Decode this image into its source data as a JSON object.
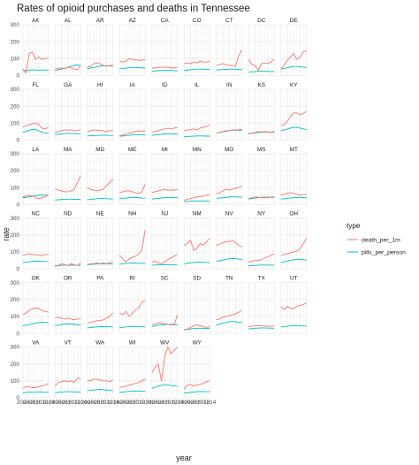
{
  "chart_data": {
    "type": "line",
    "title": "Rates of opioid purchases and deaths in Tennessee",
    "xlabel": "year",
    "ylabel": "rate",
    "ylim": [
      0,
      300
    ],
    "yticks": [
      0,
      100,
      200,
      300
    ],
    "x": [
      2006,
      2007,
      2008,
      2009,
      2010,
      2011,
      2012,
      2013,
      2014
    ],
    "xtick_labels": [
      "2006",
      "2008",
      "2010",
      "2012",
      "2014"
    ],
    "x_axis_note": "x tick labels overlap across adjacent panels",
    "grid": true,
    "facet_layout": {
      "columns": 9,
      "rows": 7,
      "scales": "fixed"
    },
    "legend": {
      "title": "type",
      "position": "right",
      "entries": [
        {
          "name": "death_per_1m",
          "color": "#F8766D"
        },
        {
          "name": "pills_per_person",
          "color": "#00BFC4"
        }
      ]
    },
    "colors": {
      "death_per_1m": "#F8766D",
      "pills_per_person": "#00BFC4",
      "grid": "#ebebeb"
    },
    "panels": [
      {
        "state": "AK",
        "death_per_1m": [
          40,
          15,
          130,
          140,
          95,
          110,
          95,
          100,
          105
        ],
        "pills_per_person": [
          30,
          30,
          32,
          34,
          33,
          32,
          33,
          33,
          32
        ]
      },
      {
        "state": "AL",
        "death_per_1m": [
          40,
          42,
          45,
          40,
          50,
          45,
          38,
          35,
          60
        ],
        "pills_per_person": [
          30,
          35,
          38,
          42,
          48,
          55,
          60,
          62,
          60
        ]
      },
      {
        "state": "AR",
        "death_per_1m": [
          50,
          55,
          70,
          75,
          70,
          60,
          55,
          60,
          60
        ],
        "pills_per_person": [
          40,
          45,
          48,
          52,
          55,
          58,
          58,
          58,
          55
        ]
      },
      {
        "state": "AZ",
        "death_per_1m": [
          85,
          80,
          85,
          100,
          95,
          95,
          90,
          90,
          95
        ],
        "pills_per_person": [
          40,
          42,
          44,
          46,
          48,
          48,
          47,
          45,
          44
        ]
      },
      {
        "state": "CA",
        "death_per_1m": [
          45,
          45,
          48,
          50,
          50,
          48,
          45,
          45,
          48
        ],
        "pills_per_person": [
          25,
          27,
          29,
          30,
          31,
          31,
          30,
          29,
          28
        ]
      },
      {
        "state": "CO",
        "death_per_1m": [
          70,
          75,
          70,
          80,
          75,
          85,
          80,
          80,
          85
        ],
        "pills_per_person": [
          30,
          32,
          35,
          36,
          38,
          38,
          38,
          37,
          36
        ]
      },
      {
        "state": "CT",
        "death_per_1m": [
          60,
          65,
          70,
          65,
          60,
          60,
          55,
          120,
          150
        ],
        "pills_per_person": [
          32,
          34,
          36,
          37,
          38,
          38,
          38,
          37,
          36
        ]
      },
      {
        "state": "DC",
        "death_per_1m": [
          95,
          65,
          60,
          30,
          70,
          75,
          70,
          80,
          95
        ],
        "pills_per_person": [
          22,
          22,
          24,
          25,
          26,
          26,
          25,
          24,
          24
        ]
      },
      {
        "state": "DE",
        "death_per_1m": [
          40,
          60,
          90,
          110,
          130,
          95,
          110,
          140,
          145
        ],
        "pills_per_person": [
          38,
          42,
          46,
          50,
          54,
          54,
          52,
          50,
          48
        ]
      },
      {
        "state": "FL",
        "death_per_1m": [
          75,
          85,
          90,
          95,
          100,
          90,
          70,
          65,
          75
        ],
        "pills_per_person": [
          45,
          52,
          58,
          62,
          64,
          54,
          46,
          42,
          40
        ]
      },
      {
        "state": "GA",
        "death_per_1m": [
          45,
          50,
          55,
          60,
          58,
          60,
          55,
          55,
          62
        ],
        "pills_per_person": [
          32,
          34,
          36,
          38,
          39,
          39,
          38,
          37,
          36
        ]
      },
      {
        "state": "HI",
        "death_per_1m": [
          50,
          55,
          60,
          58,
          55,
          55,
          50,
          55,
          55
        ],
        "pills_per_person": [
          24,
          25,
          26,
          27,
          28,
          28,
          28,
          27,
          27
        ]
      },
      {
        "state": "IA",
        "death_per_1m": [
          25,
          30,
          35,
          40,
          45,
          50,
          55,
          50,
          55
        ],
        "pills_per_person": [
          22,
          24,
          26,
          28,
          30,
          31,
          31,
          30,
          30
        ]
      },
      {
        "state": "ID",
        "death_per_1m": [
          45,
          50,
          55,
          60,
          65,
          70,
          65,
          70,
          75
        ],
        "pills_per_person": [
          28,
          30,
          32,
          34,
          36,
          37,
          37,
          36,
          36
        ]
      },
      {
        "state": "IL",
        "death_per_1m": [
          55,
          60,
          60,
          65,
          60,
          70,
          75,
          80,
          90
        ],
        "pills_per_person": [
          20,
          21,
          22,
          23,
          24,
          24,
          24,
          23,
          23
        ]
      },
      {
        "state": "IN",
        "death_per_1m": [
          40,
          45,
          50,
          55,
          55,
          60,
          60,
          60,
          65
        ],
        "pills_per_person": [
          40,
          44,
          48,
          52,
          56,
          58,
          58,
          57,
          56
        ]
      },
      {
        "state": "KS",
        "death_per_1m": [
          35,
          40,
          45,
          50,
          48,
          50,
          48,
          45,
          50
        ],
        "pills_per_person": [
          38,
          40,
          42,
          44,
          46,
          47,
          47,
          46,
          45
        ]
      },
      {
        "state": "KY",
        "death_per_1m": [
          85,
          90,
          110,
          140,
          160,
          160,
          150,
          155,
          170
        ],
        "pills_per_person": [
          55,
          60,
          65,
          70,
          75,
          75,
          70,
          65,
          62
        ]
      },
      {
        "state": "LA",
        "death_per_1m": [
          45,
          50,
          55,
          50,
          40,
          35,
          40,
          45,
          55
        ],
        "pills_per_person": [
          40,
          42,
          45,
          48,
          52,
          55,
          56,
          55,
          54
        ]
      },
      {
        "state": "MA",
        "death_per_1m": [
          90,
          85,
          80,
          75,
          75,
          80,
          90,
          130,
          170
        ],
        "pills_per_person": [
          26,
          28,
          29,
          30,
          31,
          31,
          30,
          30,
          29
        ]
      },
      {
        "state": "MD",
        "death_per_1m": [
          100,
          90,
          85,
          80,
          85,
          90,
          110,
          130,
          150
        ],
        "pills_per_person": [
          28,
          30,
          32,
          34,
          35,
          35,
          34,
          33,
          32
        ]
      },
      {
        "state": "ME",
        "death_per_1m": [
          70,
          75,
          80,
          80,
          75,
          70,
          65,
          75,
          120
        ],
        "pills_per_person": [
          34,
          36,
          38,
          40,
          41,
          41,
          40,
          38,
          37
        ]
      },
      {
        "state": "MI",
        "death_per_1m": [
          70,
          75,
          80,
          85,
          90,
          85,
          85,
          85,
          90
        ],
        "pills_per_person": [
          32,
          34,
          36,
          38,
          40,
          41,
          41,
          40,
          40
        ]
      },
      {
        "state": "MN",
        "death_per_1m": [
          25,
          30,
          35,
          40,
          45,
          45,
          50,
          55,
          60
        ],
        "pills_per_person": [
          16,
          18,
          19,
          20,
          21,
          21,
          21,
          20,
          20
        ]
      },
      {
        "state": "MO",
        "death_per_1m": [
          65,
          70,
          80,
          90,
          85,
          90,
          95,
          100,
          110
        ],
        "pills_per_person": [
          36,
          38,
          40,
          42,
          44,
          45,
          45,
          44,
          43
        ]
      },
      {
        "state": "MS",
        "death_per_1m": [
          35,
          40,
          45,
          42,
          40,
          40,
          40,
          45,
          45
        ],
        "pills_per_person": [
          32,
          35,
          38,
          40,
          42,
          43,
          43,
          42,
          42
        ]
      },
      {
        "state": "MT",
        "death_per_1m": [
          55,
          60,
          65,
          70,
          65,
          60,
          55,
          60,
          60
        ],
        "pills_per_person": [
          32,
          34,
          36,
          38,
          40,
          41,
          41,
          40,
          40
        ]
      },
      {
        "state": "NC",
        "death_per_1m": [
          80,
          85,
          90,
          85,
          85,
          80,
          80,
          85,
          85
        ],
        "pills_per_person": [
          38,
          40,
          42,
          44,
          46,
          46,
          45,
          44,
          43
        ]
      },
      {
        "state": "ND",
        "death_per_1m": [
          15,
          20,
          30,
          25,
          20,
          30,
          25,
          20,
          35
        ],
        "pills_per_person": [
          18,
          20,
          21,
          22,
          22,
          22,
          22,
          21,
          21
        ]
      },
      {
        "state": "NE",
        "death_per_1m": [
          25,
          30,
          30,
          35,
          30,
          35,
          30,
          35,
          40
        ],
        "pills_per_person": [
          24,
          26,
          28,
          29,
          30,
          30,
          30,
          29,
          29
        ]
      },
      {
        "state": "NH",
        "death_per_1m": [
          80,
          60,
          40,
          60,
          70,
          75,
          90,
          110,
          230
        ],
        "pills_per_person": [
          28,
          30,
          32,
          34,
          35,
          35,
          34,
          33,
          32
        ]
      },
      {
        "state": "NJ",
        "death_per_1m": [
          40,
          45,
          35,
          30,
          40,
          55,
          65,
          75,
          85
        ],
        "pills_per_person": [
          22,
          23,
          24,
          24,
          25,
          25,
          24,
          24,
          23
        ]
      },
      {
        "state": "NM",
        "death_per_1m": [
          140,
          150,
          170,
          110,
          120,
          150,
          140,
          160,
          180
        ],
        "pills_per_person": [
          30,
          33,
          36,
          38,
          40,
          40,
          39,
          38,
          37
        ]
      },
      {
        "state": "NV",
        "death_per_1m": [
          140,
          145,
          155,
          160,
          160,
          170,
          155,
          140,
          130
        ],
        "pills_per_person": [
          45,
          48,
          52,
          56,
          60,
          62,
          60,
          58,
          55
        ]
      },
      {
        "state": "NY",
        "death_per_1m": [
          40,
          45,
          50,
          50,
          55,
          65,
          70,
          80,
          90
        ],
        "pills_per_person": [
          18,
          20,
          21,
          22,
          23,
          23,
          23,
          22,
          22
        ]
      },
      {
        "state": "OH",
        "death_per_1m": [
          80,
          85,
          90,
          95,
          100,
          105,
          120,
          150,
          180
        ],
        "pills_per_person": [
          38,
          42,
          46,
          50,
          54,
          56,
          56,
          54,
          52
        ]
      },
      {
        "state": "OK",
        "death_per_1m": [
          110,
          120,
          135,
          145,
          150,
          145,
          135,
          130,
          125
        ],
        "pills_per_person": [
          45,
          48,
          52,
          56,
          60,
          64,
          66,
          65,
          62
        ]
      },
      {
        "state": "OR",
        "death_per_1m": [
          90,
          95,
          90,
          85,
          90,
          85,
          80,
          85,
          85
        ],
        "pills_per_person": [
          45,
          48,
          52,
          54,
          56,
          56,
          54,
          52,
          50
        ]
      },
      {
        "state": "PA",
        "death_per_1m": [
          60,
          65,
          70,
          75,
          75,
          80,
          90,
          100,
          120
        ],
        "pills_per_person": [
          32,
          34,
          36,
          38,
          39,
          40,
          40,
          39,
          38
        ]
      },
      {
        "state": "RI",
        "death_per_1m": [
          120,
          110,
          130,
          100,
          115,
          140,
          150,
          185,
          195
        ],
        "pills_per_person": [
          34,
          36,
          38,
          40,
          41,
          41,
          40,
          39,
          38
        ]
      },
      {
        "state": "SC",
        "death_per_1m": [
          50,
          55,
          60,
          60,
          55,
          55,
          50,
          50,
          110
        ],
        "pills_per_person": [
          40,
          44,
          48,
          50,
          52,
          53,
          53,
          52,
          50
        ]
      },
      {
        "state": "SD",
        "death_per_1m": [
          20,
          25,
          35,
          45,
          50,
          45,
          40,
          35,
          40
        ],
        "pills_per_person": [
          22,
          24,
          26,
          28,
          30,
          30,
          30,
          29,
          29
        ]
      },
      {
        "state": "TN",
        "death_per_1m": [
          80,
          85,
          95,
          100,
          105,
          110,
          115,
          125,
          135
        ],
        "pills_per_person": [
          50,
          55,
          60,
          65,
          68,
          70,
          68,
          66,
          64
        ]
      },
      {
        "state": "TX",
        "death_per_1m": [
          40,
          42,
          45,
          45,
          45,
          43,
          42,
          42,
          42
        ],
        "pills_per_person": [
          26,
          28,
          30,
          31,
          32,
          32,
          31,
          31,
          30
        ]
      },
      {
        "state": "UT",
        "death_per_1m": [
          160,
          140,
          160,
          150,
          145,
          160,
          165,
          170,
          180
        ],
        "pills_per_person": [
          38,
          40,
          42,
          44,
          45,
          45,
          44,
          43,
          42
        ]
      },
      {
        "state": "VA",
        "death_per_1m": [
          60,
          65,
          65,
          60,
          60,
          65,
          70,
          75,
          85
        ],
        "pills_per_person": [
          30,
          32,
          33,
          34,
          35,
          35,
          34,
          33,
          33
        ]
      },
      {
        "state": "VT",
        "death_per_1m": [
          70,
          90,
          95,
          100,
          95,
          100,
          90,
          115,
          115
        ],
        "pills_per_person": [
          30,
          32,
          34,
          35,
          36,
          36,
          35,
          34,
          34
        ]
      },
      {
        "state": "WA",
        "death_per_1m": [
          105,
          100,
          110,
          110,
          105,
          100,
          100,
          95,
          105
        ],
        "pills_per_person": [
          42,
          44,
          46,
          48,
          49,
          48,
          46,
          44,
          42
        ]
      },
      {
        "state": "WI",
        "death_per_1m": [
          60,
          65,
          70,
          75,
          80,
          85,
          90,
          100,
          110
        ],
        "pills_per_person": [
          32,
          34,
          36,
          38,
          39,
          40,
          40,
          39,
          38
        ]
      },
      {
        "state": "WV",
        "death_per_1m": [
          150,
          180,
          200,
          100,
          240,
          300,
          260,
          280,
          300
        ],
        "pills_per_person": [
          55,
          62,
          68,
          74,
          78,
          76,
          72,
          70,
          68
        ]
      },
      {
        "state": "WY",
        "death_per_1m": [
          50,
          75,
          80,
          70,
          75,
          80,
          85,
          95,
          100
        ],
        "pills_per_person": [
          28,
          30,
          32,
          34,
          36,
          37,
          37,
          36,
          36
        ]
      }
    ]
  }
}
